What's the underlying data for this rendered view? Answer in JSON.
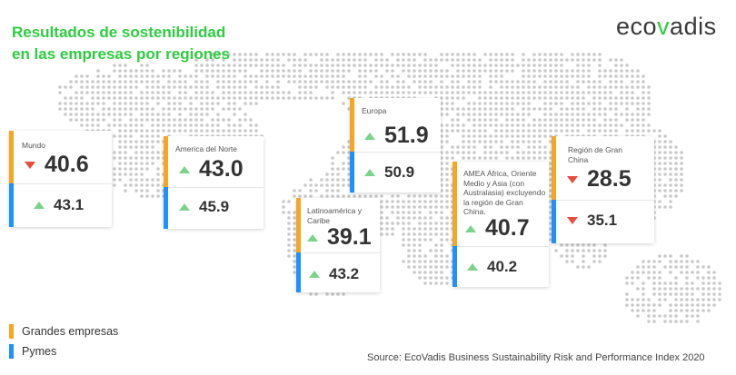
{
  "title": {
    "line1": "Resultados de sostenibilidad",
    "line2": "en las empresas por regiones"
  },
  "logo": {
    "prefix": "eco",
    "accent": "v",
    "suffix": "adis"
  },
  "colors": {
    "large": "#f5a623",
    "sme": "#1e90ff",
    "up": "#7bd389",
    "down": "#e74c3c",
    "title": "#2ecc40"
  },
  "regions": {
    "mundo": {
      "label": "Mundo",
      "large": "40.6",
      "large_trend": "down",
      "sme": "43.1",
      "sme_trend": "up"
    },
    "norte": {
      "label": "America del Norte",
      "large": "43.0",
      "large_trend": "up",
      "sme": "45.9",
      "sme_trend": "up"
    },
    "latam": {
      "label": "Latinoamérica y Caribe",
      "large": "39.1",
      "large_trend": "up",
      "sme": "43.2",
      "sme_trend": "up"
    },
    "europa": {
      "label": "Europa",
      "large": "51.9",
      "large_trend": "up",
      "sme": "50.9",
      "sme_trend": "up"
    },
    "amea": {
      "label": "AMEA África, Oriente Medio y Asia (con Australasia) excluyendo la región de Gran China.",
      "large": "40.7",
      "large_trend": "up",
      "sme": "40.2",
      "sme_trend": "up"
    },
    "china": {
      "label": "Región de Gran China",
      "large": "28.5",
      "large_trend": "down",
      "sme": "35.1",
      "sme_trend": "down"
    }
  },
  "legend": {
    "large": "Grandes empresas",
    "sme": "Pymes"
  },
  "source": "Source: EcoVadis Business Sustainability Risk and Performance Index 2020"
}
